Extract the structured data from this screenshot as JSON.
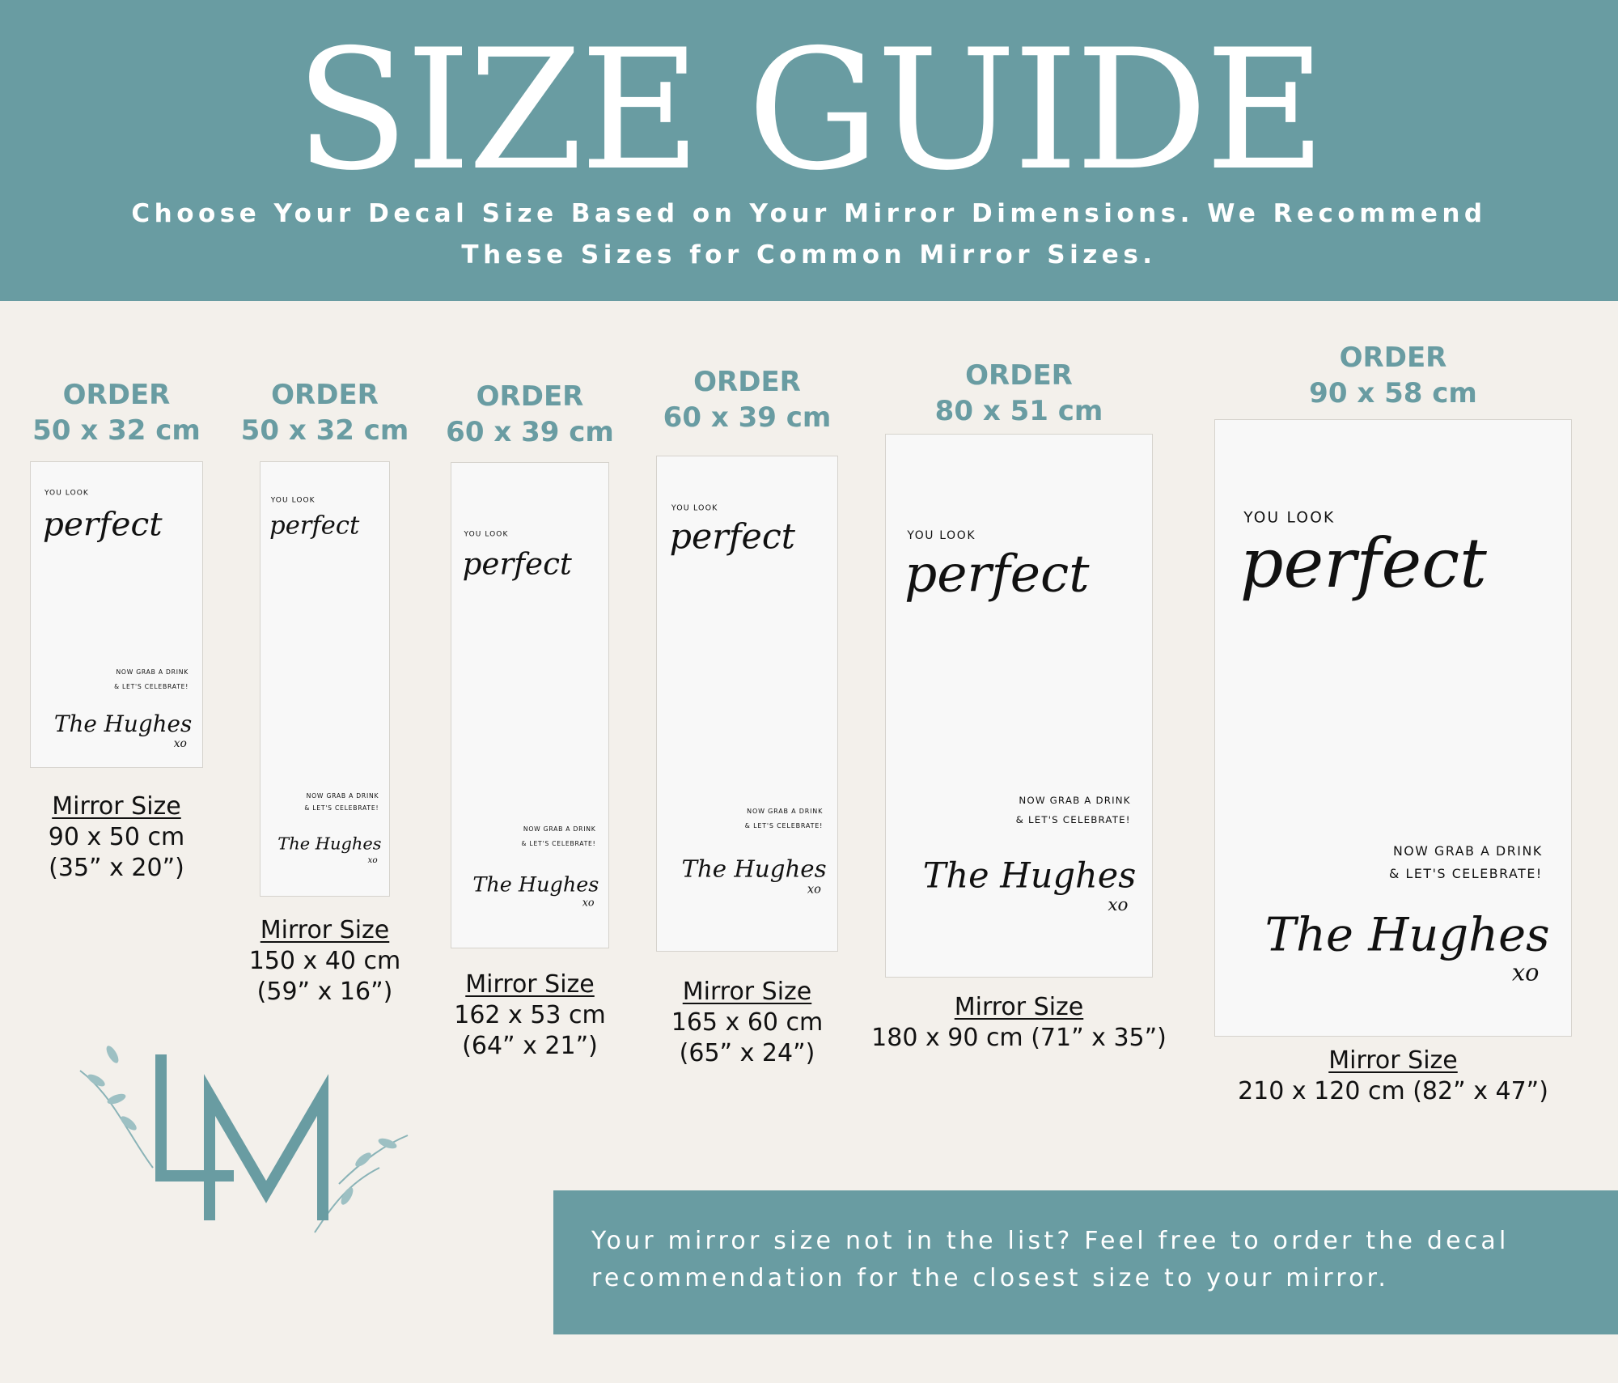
{
  "header": {
    "title": "SIZE GUIDE",
    "subtitle_line1": "Choose Your Decal Size Based on Your Mirror Dimensions. We Recommend",
    "subtitle_line2": "These Sizes for Common Mirror Sizes."
  },
  "decal_text": {
    "you_look": "YOU LOOK",
    "perfect": "perfect",
    "now_grab": "NOW GRAB A DRINK",
    "celebrate": "& LET'S CELEBRATE!",
    "signature": "The Hughes",
    "xo": "xo"
  },
  "sizes": [
    {
      "order_label": "ORDER",
      "order_size": "50 x 32 cm",
      "mirror_heading": "Mirror Size",
      "mirror_lines": [
        "90 x 50 cm",
        "(35” x 20”)"
      ]
    },
    {
      "order_label": "ORDER",
      "order_size": "50 x 32 cm",
      "mirror_heading": "Mirror Size",
      "mirror_lines": [
        "150 x 40 cm",
        "(59” x 16”)"
      ]
    },
    {
      "order_label": "ORDER",
      "order_size": "60 x 39 cm",
      "mirror_heading": "Mirror Size",
      "mirror_lines": [
        "162 x 53 cm",
        "(64” x 21”)"
      ]
    },
    {
      "order_label": "ORDER",
      "order_size": "60 x 39 cm",
      "mirror_heading": "Mirror Size",
      "mirror_lines": [
        "165 x 60 cm",
        "(65” x 24”)"
      ]
    },
    {
      "order_label": "ORDER",
      "order_size": "80 x 51 cm",
      "mirror_heading": "Mirror Size",
      "mirror_lines": [
        "180 x 90 cm (71” x 35”)"
      ]
    },
    {
      "order_label": "ORDER",
      "order_size": "90 x 58 cm",
      "mirror_heading": "Mirror Size",
      "mirror_lines": [
        "210 x 120 cm (82” x 47”)"
      ]
    }
  ],
  "logo": {
    "letters": "LM"
  },
  "footer": {
    "line1": "Your mirror size not in the list? Feel free to order the decal",
    "line2": "recommendation for the closest size to your mirror."
  },
  "colors": {
    "teal": "#699ca2",
    "background": "#f3f0eb",
    "card": "#f8f8f8"
  }
}
